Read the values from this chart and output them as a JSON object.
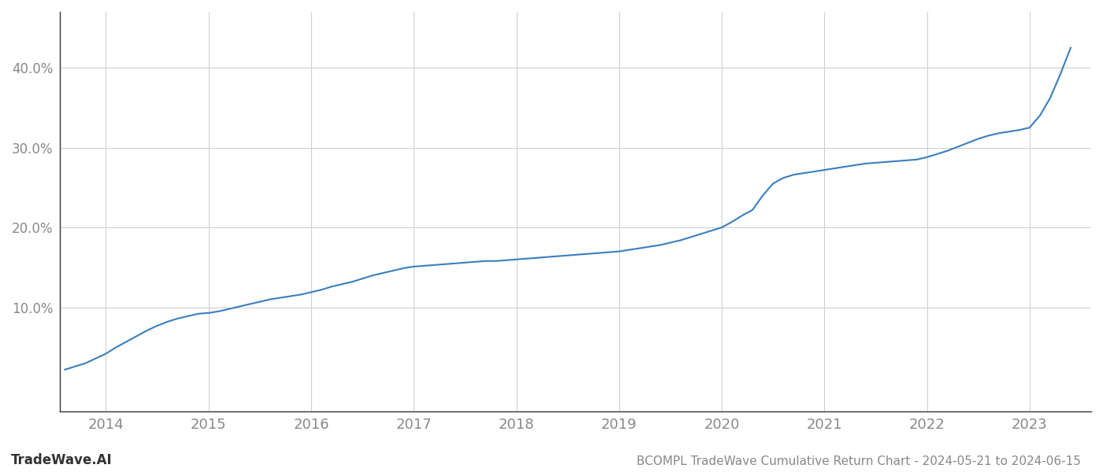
{
  "title": "BCOMPL TradeWave Cumulative Return Chart - 2024-05-21 to 2024-06-15",
  "watermark": "TradeWave.AI",
  "line_color": "#3a7ebf",
  "background_color": "#ffffff",
  "grid_color": "#cccccc",
  "axis_color": "#888888",
  "spine_color": "#333333",
  "x_ticks": [
    2014,
    2015,
    2016,
    2017,
    2018,
    2019,
    2020,
    2021,
    2022,
    2023
  ],
  "y_ticks": [
    0.1,
    0.2,
    0.3,
    0.4
  ],
  "xlim": [
    2013.55,
    2023.6
  ],
  "ylim": [
    -0.03,
    0.47
  ],
  "x_data": [
    2013.6,
    2013.7,
    2013.8,
    2013.9,
    2014.0,
    2014.1,
    2014.2,
    2014.3,
    2014.4,
    2014.5,
    2014.6,
    2014.7,
    2014.8,
    2014.9,
    2015.0,
    2015.1,
    2015.2,
    2015.3,
    2015.4,
    2015.5,
    2015.6,
    2015.7,
    2015.8,
    2015.9,
    2016.0,
    2016.1,
    2016.2,
    2016.3,
    2016.4,
    2016.5,
    2016.6,
    2016.7,
    2016.8,
    2016.9,
    2017.0,
    2017.1,
    2017.2,
    2017.3,
    2017.4,
    2017.5,
    2017.6,
    2017.7,
    2017.8,
    2017.9,
    2018.0,
    2018.1,
    2018.2,
    2018.3,
    2018.4,
    2018.5,
    2018.6,
    2018.7,
    2018.8,
    2018.9,
    2019.0,
    2019.1,
    2019.2,
    2019.3,
    2019.4,
    2019.5,
    2019.6,
    2019.7,
    2019.8,
    2019.9,
    2020.0,
    2020.1,
    2020.2,
    2020.3,
    2020.4,
    2020.5,
    2020.6,
    2020.7,
    2020.8,
    2020.9,
    2021.0,
    2021.1,
    2021.2,
    2021.3,
    2021.4,
    2021.5,
    2021.6,
    2021.7,
    2021.8,
    2021.9,
    2022.0,
    2022.1,
    2022.2,
    2022.3,
    2022.4,
    2022.5,
    2022.6,
    2022.7,
    2022.8,
    2022.9,
    2023.0,
    2023.1,
    2023.2,
    2023.3,
    2023.4
  ],
  "y_data": [
    0.022,
    0.026,
    0.03,
    0.036,
    0.042,
    0.05,
    0.057,
    0.064,
    0.071,
    0.077,
    0.082,
    0.086,
    0.089,
    0.092,
    0.093,
    0.095,
    0.098,
    0.101,
    0.104,
    0.107,
    0.11,
    0.112,
    0.114,
    0.116,
    0.119,
    0.122,
    0.126,
    0.129,
    0.132,
    0.136,
    0.14,
    0.143,
    0.146,
    0.149,
    0.151,
    0.152,
    0.153,
    0.154,
    0.155,
    0.156,
    0.157,
    0.158,
    0.158,
    0.159,
    0.16,
    0.161,
    0.162,
    0.163,
    0.164,
    0.165,
    0.166,
    0.167,
    0.168,
    0.169,
    0.17,
    0.172,
    0.174,
    0.176,
    0.178,
    0.181,
    0.184,
    0.188,
    0.192,
    0.196,
    0.2,
    0.207,
    0.215,
    0.222,
    0.24,
    0.255,
    0.262,
    0.266,
    0.268,
    0.27,
    0.272,
    0.274,
    0.276,
    0.278,
    0.28,
    0.281,
    0.282,
    0.283,
    0.284,
    0.285,
    0.288,
    0.292,
    0.296,
    0.301,
    0.306,
    0.311,
    0.315,
    0.318,
    0.32,
    0.322,
    0.325,
    0.34,
    0.362,
    0.392,
    0.425
  ]
}
